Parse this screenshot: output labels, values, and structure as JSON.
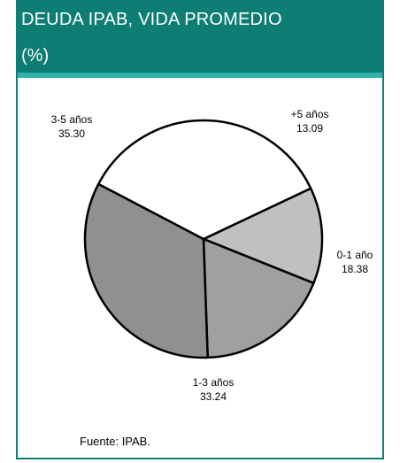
{
  "header": {
    "title": "DEUDA IPAB, VIDA PROMEDIO",
    "unit": "(%)"
  },
  "source": "Fuente: IPAB.",
  "chart_data": {
    "type": "pie",
    "title": "DEUDA IPAB, VIDA PROMEDIO (%)",
    "slices": [
      {
        "label": "+5 años",
        "value": 13.09,
        "color": "#c0c0c0"
      },
      {
        "label": "0-1 año",
        "value": 18.38,
        "color": "#a0a0a0"
      },
      {
        "label": "1-3 años",
        "value": 33.24,
        "color": "#909090"
      },
      {
        "label": "3-5 años",
        "value": 35.3,
        "color": "#ffffff"
      }
    ]
  }
}
